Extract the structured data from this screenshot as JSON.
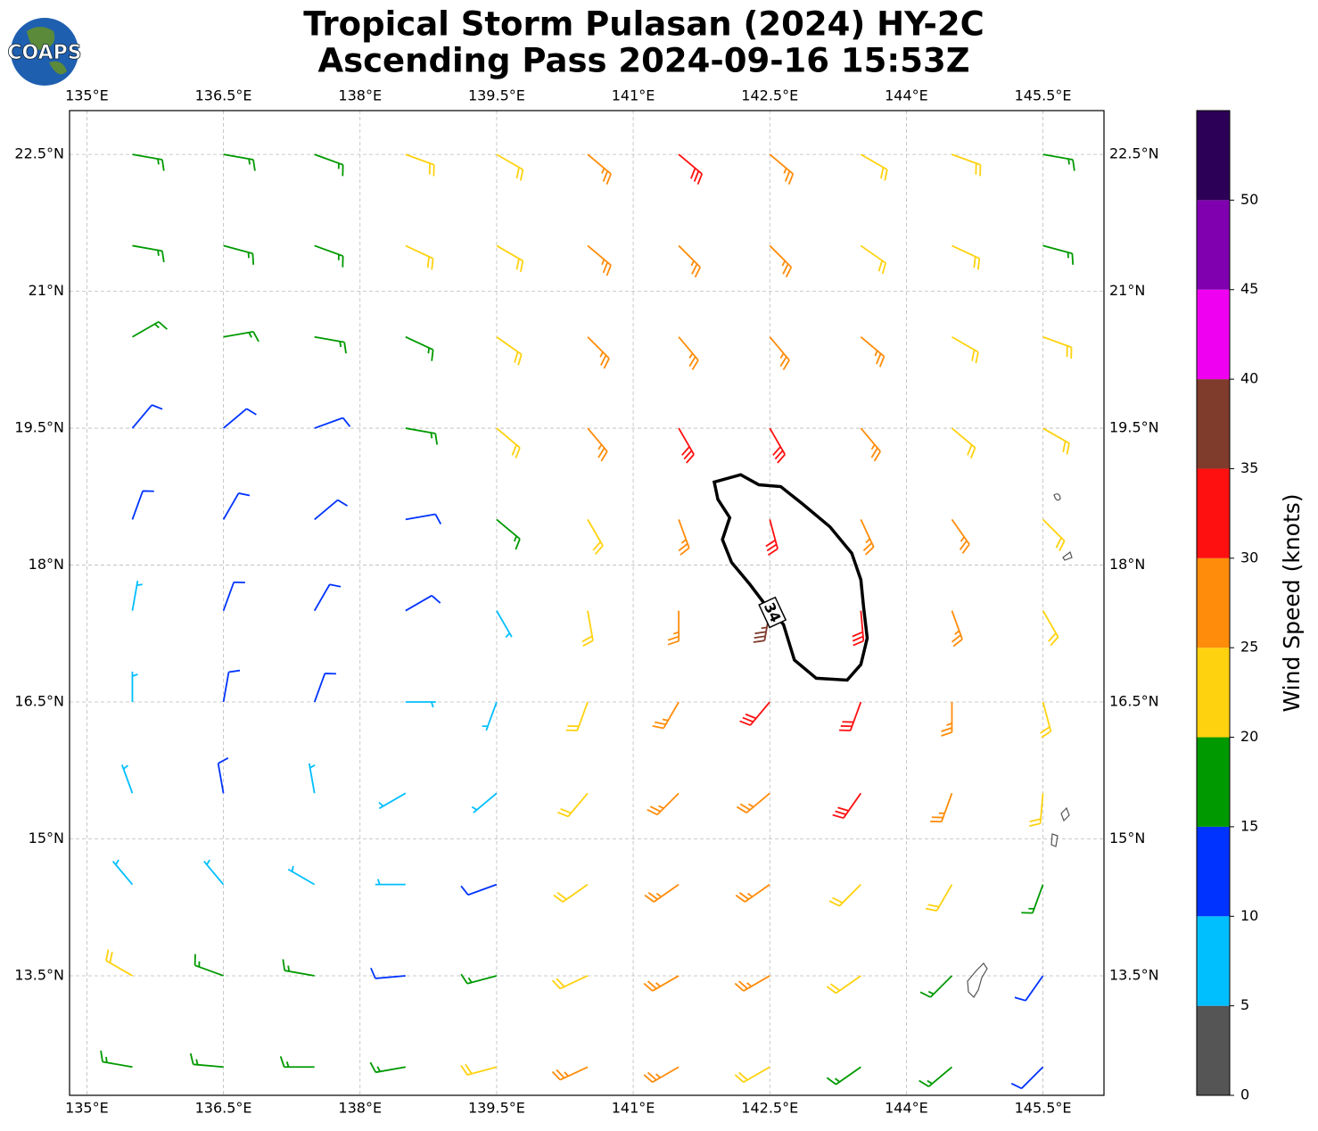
{
  "chart_data": {
    "type": "barbs",
    "title": "Tropical Storm Pulasan (2024) HY-2C",
    "subtitle": "Ascending Pass 2024-09-16 15:53Z",
    "logo": "COAPS",
    "xlim": [
      134.81,
      146.17
    ],
    "ylim": [
      12.19,
      22.98
    ],
    "xticks": [
      {
        "value": 135,
        "label": "135°E"
      },
      {
        "value": 136.5,
        "label": "136.5°E"
      },
      {
        "value": 138,
        "label": "138°E"
      },
      {
        "value": 139.5,
        "label": "139.5°E"
      },
      {
        "value": 141,
        "label": "141°E"
      },
      {
        "value": 142.5,
        "label": "142.5°E"
      },
      {
        "value": 144,
        "label": "144°E"
      },
      {
        "value": 145.5,
        "label": "145.5°E"
      }
    ],
    "yticks": [
      {
        "value": 13.5,
        "label": "13.5°N"
      },
      {
        "value": 15,
        "label": "15°N"
      },
      {
        "value": 16.5,
        "label": "16.5°N"
      },
      {
        "value": 18,
        "label": "18°N"
      },
      {
        "value": 19.5,
        "label": "19.5°N"
      },
      {
        "value": 21,
        "label": "21°N"
      },
      {
        "value": 22.5,
        "label": "22.5°N"
      }
    ],
    "grid": true,
    "lon": [
      135.5,
      136.5,
      137.5,
      138.5,
      139.5,
      140.5,
      141.5,
      142.5,
      143.5,
      144.5,
      145.5
    ],
    "lat": [
      22.5,
      21.5,
      20.5,
      19.5,
      18.5,
      17.5,
      16.5,
      15.5,
      14.5,
      13.5,
      12.5
    ],
    "speed": [
      [
        17,
        17,
        18,
        22,
        22,
        27,
        31,
        28,
        23,
        22,
        18
      ],
      [
        17,
        17,
        18,
        22,
        23,
        27,
        28,
        27,
        24,
        22,
        18
      ],
      [
        16,
        17,
        17,
        19,
        23,
        26,
        28,
        28,
        26,
        24,
        22
      ],
      [
        13,
        13,
        14,
        17,
        22,
        27,
        31,
        32,
        28,
        24,
        22
      ],
      [
        12,
        13,
        13,
        14,
        18,
        23,
        27,
        32,
        29,
        26,
        23
      ],
      [
        9,
        12,
        13,
        12,
        9,
        21,
        27,
        37,
        32,
        27,
        23
      ],
      [
        8,
        11,
        12,
        8,
        7,
        20,
        27,
        31,
        31,
        27,
        22
      ],
      [
        8,
        11,
        8,
        7,
        9,
        22,
        27,
        28,
        31,
        27,
        22
      ],
      [
        7,
        7,
        6,
        6,
        11,
        23,
        27,
        27,
        24,
        22,
        17
      ],
      [
        22,
        17,
        16,
        11,
        17,
        22,
        27,
        27,
        23,
        17,
        12
      ],
      [
        18,
        17,
        17,
        17,
        22,
        27,
        27,
        22,
        18,
        17,
        12
      ]
    ],
    "direction": [
      [
        100,
        100,
        110,
        110,
        120,
        130,
        130,
        130,
        120,
        110,
        100
      ],
      [
        100,
        105,
        110,
        115,
        120,
        130,
        135,
        135,
        125,
        115,
        105
      ],
      [
        60,
        80,
        100,
        115,
        125,
        135,
        140,
        140,
        130,
        120,
        110
      ],
      [
        40,
        50,
        70,
        100,
        130,
        140,
        150,
        150,
        140,
        130,
        120
      ],
      [
        20,
        30,
        50,
        80,
        130,
        150,
        160,
        165,
        155,
        145,
        135
      ],
      [
        10,
        20,
        30,
        60,
        150,
        170,
        180,
        190,
        175,
        160,
        150
      ],
      [
        360,
        10,
        20,
        90,
        200,
        200,
        210,
        220,
        200,
        180,
        165
      ],
      [
        340,
        350,
        350,
        240,
        230,
        220,
        225,
        230,
        215,
        200,
        185
      ],
      [
        320,
        320,
        300,
        270,
        250,
        235,
        235,
        235,
        225,
        210,
        200
      ],
      [
        300,
        290,
        280,
        265,
        255,
        245,
        240,
        240,
        235,
        225,
        215
      ],
      [
        280,
        275,
        270,
        260,
        255,
        245,
        240,
        240,
        235,
        230,
        225
      ]
    ],
    "contour": {
      "level": 34,
      "lon": [
        141.89,
        142.18,
        142.38,
        142.62,
        142.86,
        143.16,
        143.4,
        143.5,
        143.53,
        143.57,
        143.5,
        143.35,
        143.01,
        142.77,
        142.65,
        142.47,
        142.28,
        142.08,
        141.98,
        142.06,
        141.93
      ],
      "lat": [
        18.91,
        18.99,
        18.88,
        18.86,
        18.67,
        18.42,
        18.13,
        17.84,
        17.54,
        17.2,
        16.91,
        16.74,
        16.76,
        16.96,
        17.35,
        17.54,
        17.79,
        18.03,
        18.28,
        18.52,
        18.72
      ]
    },
    "colorbar": {
      "label": "Wind Speed (knots)",
      "bounds": [
        0,
        5,
        10,
        15,
        20,
        25,
        30,
        35,
        40,
        45,
        50,
        55
      ],
      "colors": [
        "#555555",
        "#00bfff",
        "#0033ff",
        "#009900",
        "#ffd20f",
        "#ff8c0a",
        "#ff1010",
        "#7f3b2b",
        "#f000f0",
        "#8000b0",
        "#2d0057"
      ],
      "ticks": [
        0,
        5,
        10,
        15,
        20,
        25,
        30,
        35,
        40,
        45,
        50
      ]
    }
  }
}
